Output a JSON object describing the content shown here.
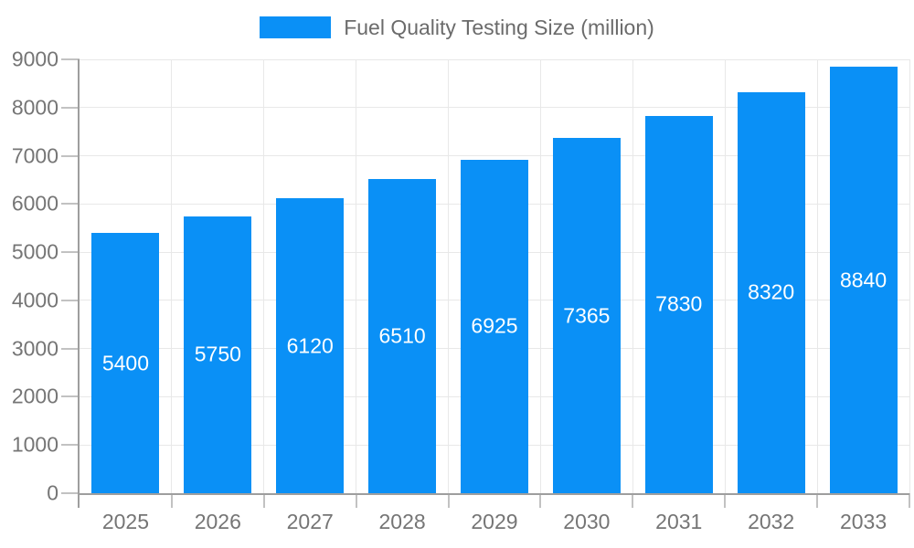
{
  "chart_data": {
    "type": "bar",
    "title": "Fuel Quality Testing Size (million)",
    "categories": [
      "2025",
      "2026",
      "2027",
      "2028",
      "2029",
      "2030",
      "2031",
      "2032",
      "2033"
    ],
    "values": [
      5400,
      5750,
      6120,
      6510,
      6925,
      7365,
      7830,
      8320,
      8840
    ],
    "bar_value_labels": [
      "5400",
      "5750",
      "6120",
      "6510",
      "6925",
      "7365",
      "7830",
      "8320",
      "8840"
    ],
    "xlabel": "",
    "ylabel": "",
    "ylim": [
      0,
      9000
    ],
    "ytick_step": 1000,
    "ytick_labels": [
      "0",
      "1000",
      "2000",
      "3000",
      "4000",
      "5000",
      "6000",
      "7000",
      "8000",
      "9000"
    ],
    "grid": true,
    "legend_position": "top-center",
    "colors": {
      "bar": "#0a90f6",
      "bar_label_text": "#ffffff",
      "axis_text": "#757575",
      "legend_text": "#6b6b6b",
      "axis_line": "#9e9e9e",
      "tick": "#c2c2c2",
      "gridline": "#e8e8e8",
      "background": "#ffffff"
    }
  }
}
